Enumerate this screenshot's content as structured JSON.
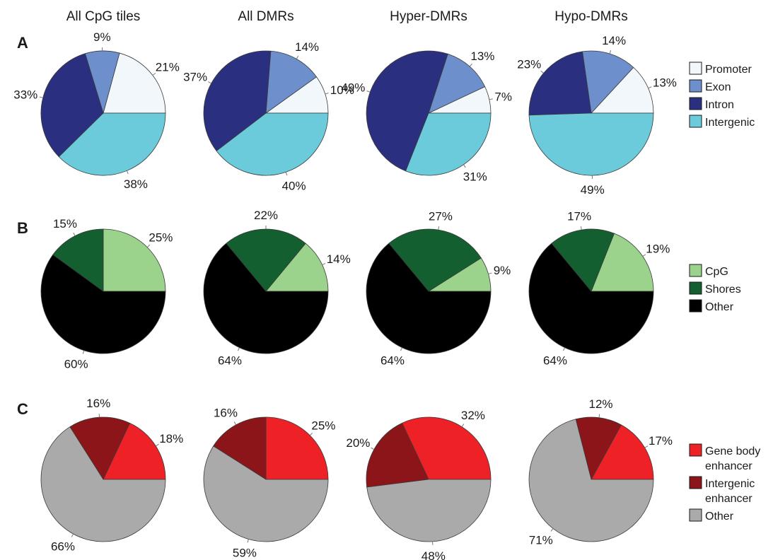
{
  "column_titles": [
    "All CpG tiles",
    "All DMRs",
    "Hyper-DMRs",
    "Hypo-DMRs"
  ],
  "chart_data": [
    {
      "panel": "A",
      "type": "pie",
      "legend": [
        {
          "label": "Promoter",
          "color": "#f2f7fc"
        },
        {
          "label": "Exon",
          "color": "#6d8fcc"
        },
        {
          "label": "Intron",
          "color": "#2b2f7f"
        },
        {
          "label": "Intergenic",
          "color": "#6bcbdb"
        }
      ],
      "pies": [
        {
          "title": "All CpG tiles",
          "values": [
            21,
            9,
            33,
            38
          ],
          "labels": [
            "21%",
            "9%",
            "33%",
            "38%"
          ]
        },
        {
          "title": "All DMRs",
          "values": [
            10,
            14,
            37,
            40
          ],
          "labels": [
            "10%",
            "14%",
            "37%",
            "40%"
          ]
        },
        {
          "title": "Hyper-DMRs",
          "values": [
            7,
            13,
            49,
            31
          ],
          "labels": [
            "7%",
            "13%",
            "49%",
            "31%"
          ]
        },
        {
          "title": "Hypo-DMRs",
          "values": [
            13,
            14,
            23,
            49
          ],
          "labels": [
            "13%",
            "14%",
            "23%",
            "49%"
          ]
        }
      ]
    },
    {
      "panel": "B",
      "type": "pie",
      "legend": [
        {
          "label": "CpG",
          "color": "#9bd38c"
        },
        {
          "label": "Shores",
          "color": "#135f2f"
        },
        {
          "label": "Other",
          "color": "#000000"
        }
      ],
      "pies": [
        {
          "title": "All CpG tiles",
          "values": [
            25,
            15,
            60
          ],
          "labels": [
            "25%",
            "15%",
            "60%"
          ]
        },
        {
          "title": "All DMRs",
          "values": [
            14,
            22,
            64
          ],
          "labels": [
            "14%",
            "22%",
            "64%"
          ]
        },
        {
          "title": "Hyper-DMRs",
          "values": [
            9,
            27,
            64
          ],
          "labels": [
            "9%",
            "27%",
            "64%"
          ]
        },
        {
          "title": "Hypo-DMRs",
          "values": [
            19,
            17,
            64
          ],
          "labels": [
            "19%",
            "17%",
            "64%"
          ]
        }
      ]
    },
    {
      "panel": "C",
      "type": "pie",
      "legend": [
        {
          "label": "Gene body enhancer",
          "lines": [
            "Gene body",
            "enhancer"
          ],
          "color": "#ee2126"
        },
        {
          "label": "Intergenic enhancer",
          "lines": [
            "Intergenic",
            "enhancer"
          ],
          "color": "#8b1518"
        },
        {
          "label": "Other",
          "lines": [
            "Other"
          ],
          "color": "#aaaaaa"
        }
      ],
      "pies": [
        {
          "title": "All CpG tiles",
          "values": [
            18,
            16,
            66
          ],
          "labels": [
            "18%",
            "16%",
            "66%"
          ]
        },
        {
          "title": "All DMRs",
          "values": [
            25,
            16,
            59
          ],
          "labels": [
            "25%",
            "16%",
            "59%"
          ]
        },
        {
          "title": "Hyper-DMRs",
          "values": [
            32,
            20,
            48
          ],
          "labels": [
            "32%",
            "20%",
            "48%"
          ]
        },
        {
          "title": "Hypo-DMRs",
          "values": [
            17,
            12,
            71
          ],
          "labels": [
            "17%",
            "12%",
            "71%"
          ]
        }
      ]
    }
  ]
}
